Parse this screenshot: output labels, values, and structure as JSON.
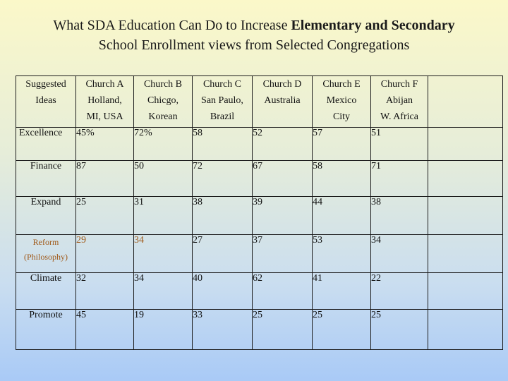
{
  "title": {
    "part1": "What SDA Education Can Do to Increase ",
    "part2": "Elementary and Secondary",
    "line2": "School Enrollment views from Selected Congregations"
  },
  "table": {
    "headers": [
      [
        "Suggested",
        "Ideas",
        ""
      ],
      [
        "Church A",
        "Holland,",
        "MI, USA"
      ],
      [
        "Church B",
        "Chicgo,",
        "Korean"
      ],
      [
        "Church C",
        "San Paulo,",
        "Brazil"
      ],
      [
        "Church D",
        "Australia",
        ""
      ],
      [
        "Church E",
        "Mexico",
        "City"
      ],
      [
        "Church F",
        "Abijan",
        "W. Africa"
      ],
      [
        "",
        "",
        ""
      ]
    ],
    "rows": [
      {
        "label": [
          "Excellence"
        ],
        "values": [
          "45%",
          "72%",
          "58",
          "52",
          "57",
          "51",
          ""
        ]
      },
      {
        "label": [
          "Finance"
        ],
        "values": [
          "87",
          "50",
          "72",
          "67",
          "58",
          "71",
          ""
        ]
      },
      {
        "label": [
          "Expand"
        ],
        "values": [
          "25",
          "31",
          "38",
          "39",
          "44",
          "38",
          ""
        ]
      },
      {
        "label": [
          "Reform",
          "(Philosophy)"
        ],
        "values": [
          "29",
          "34",
          "27",
          "37",
          "53",
          "34",
          ""
        ]
      },
      {
        "label": [
          "Climate"
        ],
        "values": [
          "32",
          "34",
          "40",
          "62",
          "41",
          "22",
          ""
        ]
      },
      {
        "label": [
          "Promote"
        ],
        "values": [
          "45",
          "19",
          "33",
          "25",
          "25",
          "25",
          ""
        ]
      }
    ],
    "accent_color": "#a05a1a"
  }
}
